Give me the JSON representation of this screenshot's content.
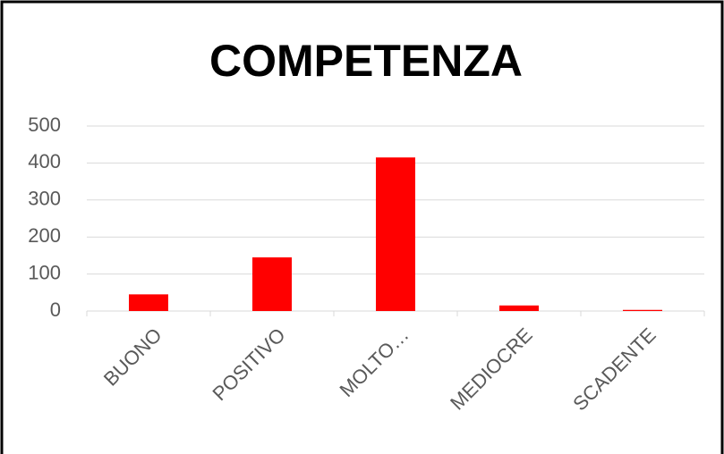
{
  "chart_data": {
    "type": "bar",
    "title": "COMPETENZA",
    "categories": [
      "BUONO",
      "POSITIVO",
      "MOLTO…",
      "MEDIOCRE",
      "SCADENTE"
    ],
    "values": [
      45,
      145,
      415,
      15,
      3
    ],
    "color": "#ff0000",
    "ylim": [
      0,
      500
    ],
    "yticks": [
      0,
      100,
      200,
      300,
      400,
      500
    ],
    "grid": true
  }
}
